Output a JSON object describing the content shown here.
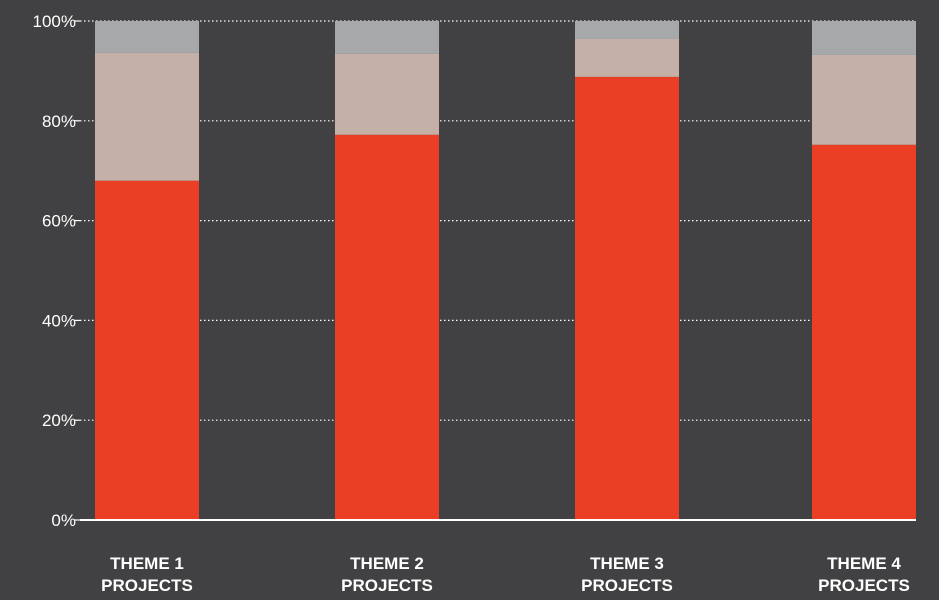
{
  "chart_data": {
    "type": "bar",
    "stacked": true,
    "percent": true,
    "categories": [
      [
        "THEME 1",
        "PROJECTS"
      ],
      [
        "THEME 2",
        "PROJECTS"
      ],
      [
        "THEME 3",
        "PROJECTS"
      ],
      [
        "THEME 4",
        "PROJECTS"
      ]
    ],
    "series": [
      {
        "color": "#ea3f25",
        "values": [
          68,
          77.2,
          88.8,
          75.2
        ]
      },
      {
        "color": "#c4b0a6",
        "values": [
          25.6,
          16.2,
          7.6,
          18.0
        ]
      },
      {
        "color": "#a6a8aa",
        "values": [
          6.4,
          6.6,
          3.6,
          6.8
        ]
      }
    ],
    "ylim": [
      0,
      100
    ],
    "yticks": [
      0,
      20,
      40,
      60,
      80,
      100
    ],
    "ytick_labels": [
      "0%",
      "20%",
      "40%",
      "60%",
      "80%",
      "100%"
    ],
    "grid": true,
    "title": "",
    "xlabel": "",
    "ylabel": "",
    "colors": {
      "background": "#414042",
      "text": "#ffffff",
      "grid": "#ffffff",
      "axis": "#ffffff"
    }
  }
}
